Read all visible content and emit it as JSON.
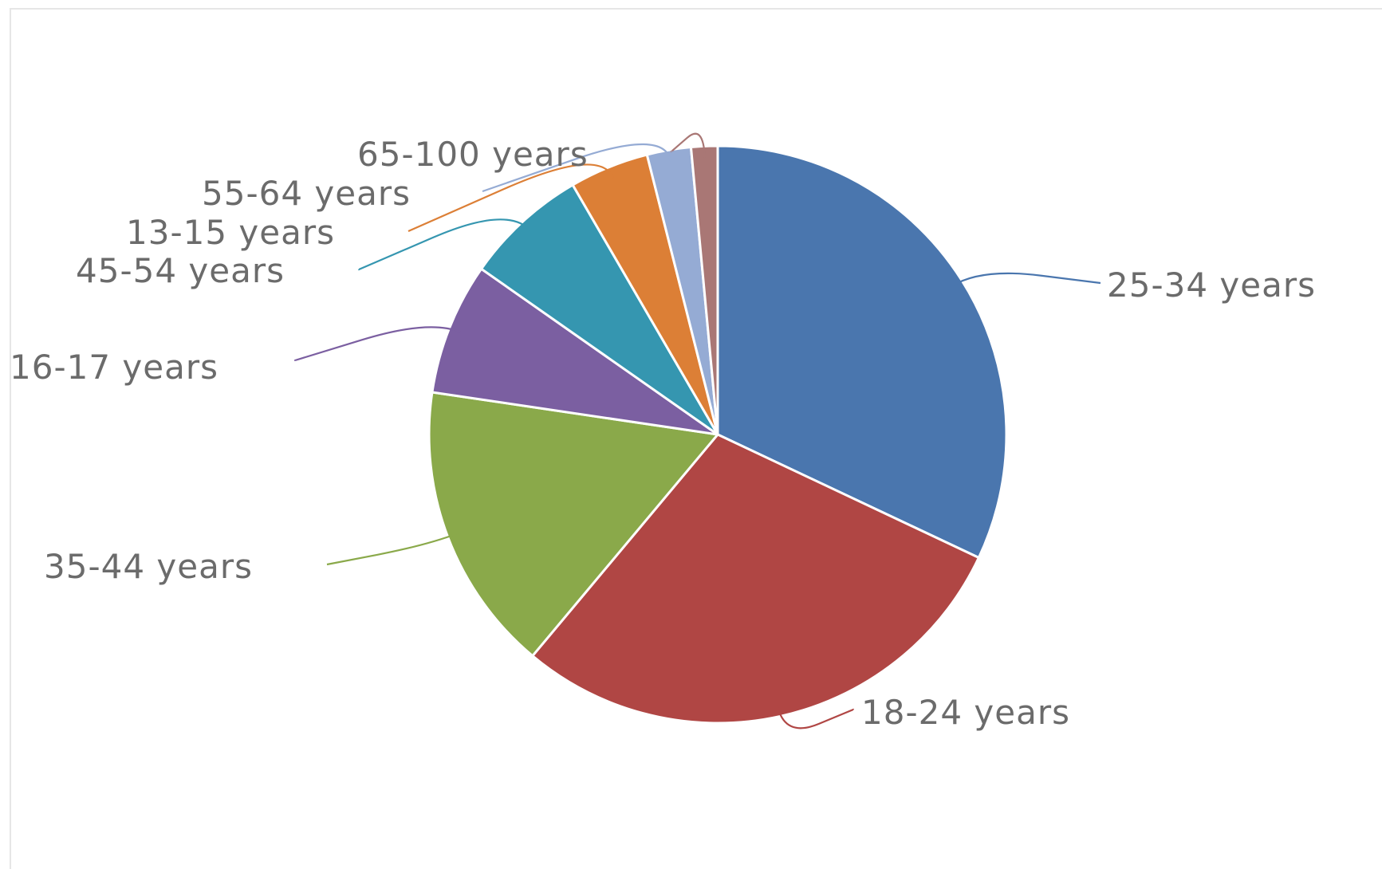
{
  "chart_data": {
    "type": "pie",
    "title": "",
    "start_angle_deg": 0,
    "direction": "clockwise",
    "legend": "none",
    "slices": [
      {
        "label": "25-34 years",
        "value": 32.5,
        "color": "#4a76ae"
      },
      {
        "label": "18-24 years",
        "value": 29.5,
        "color": "#b04644"
      },
      {
        "label": "35-44 years",
        "value": 16.5,
        "color": "#8aa94a"
      },
      {
        "label": "16-17 years",
        "value": 7.5,
        "color": "#7b5fa1"
      },
      {
        "label": "45-54 years",
        "value": 7.0,
        "color": "#3596b0"
      },
      {
        "label": "13-15 years",
        "value": 4.5,
        "color": "#dc7f36"
      },
      {
        "label": "55-64 years",
        "value": 2.5,
        "color": "#95abd4"
      },
      {
        "label": "65-100 years",
        "value": 1.5,
        "color": "#a97775"
      }
    ]
  }
}
